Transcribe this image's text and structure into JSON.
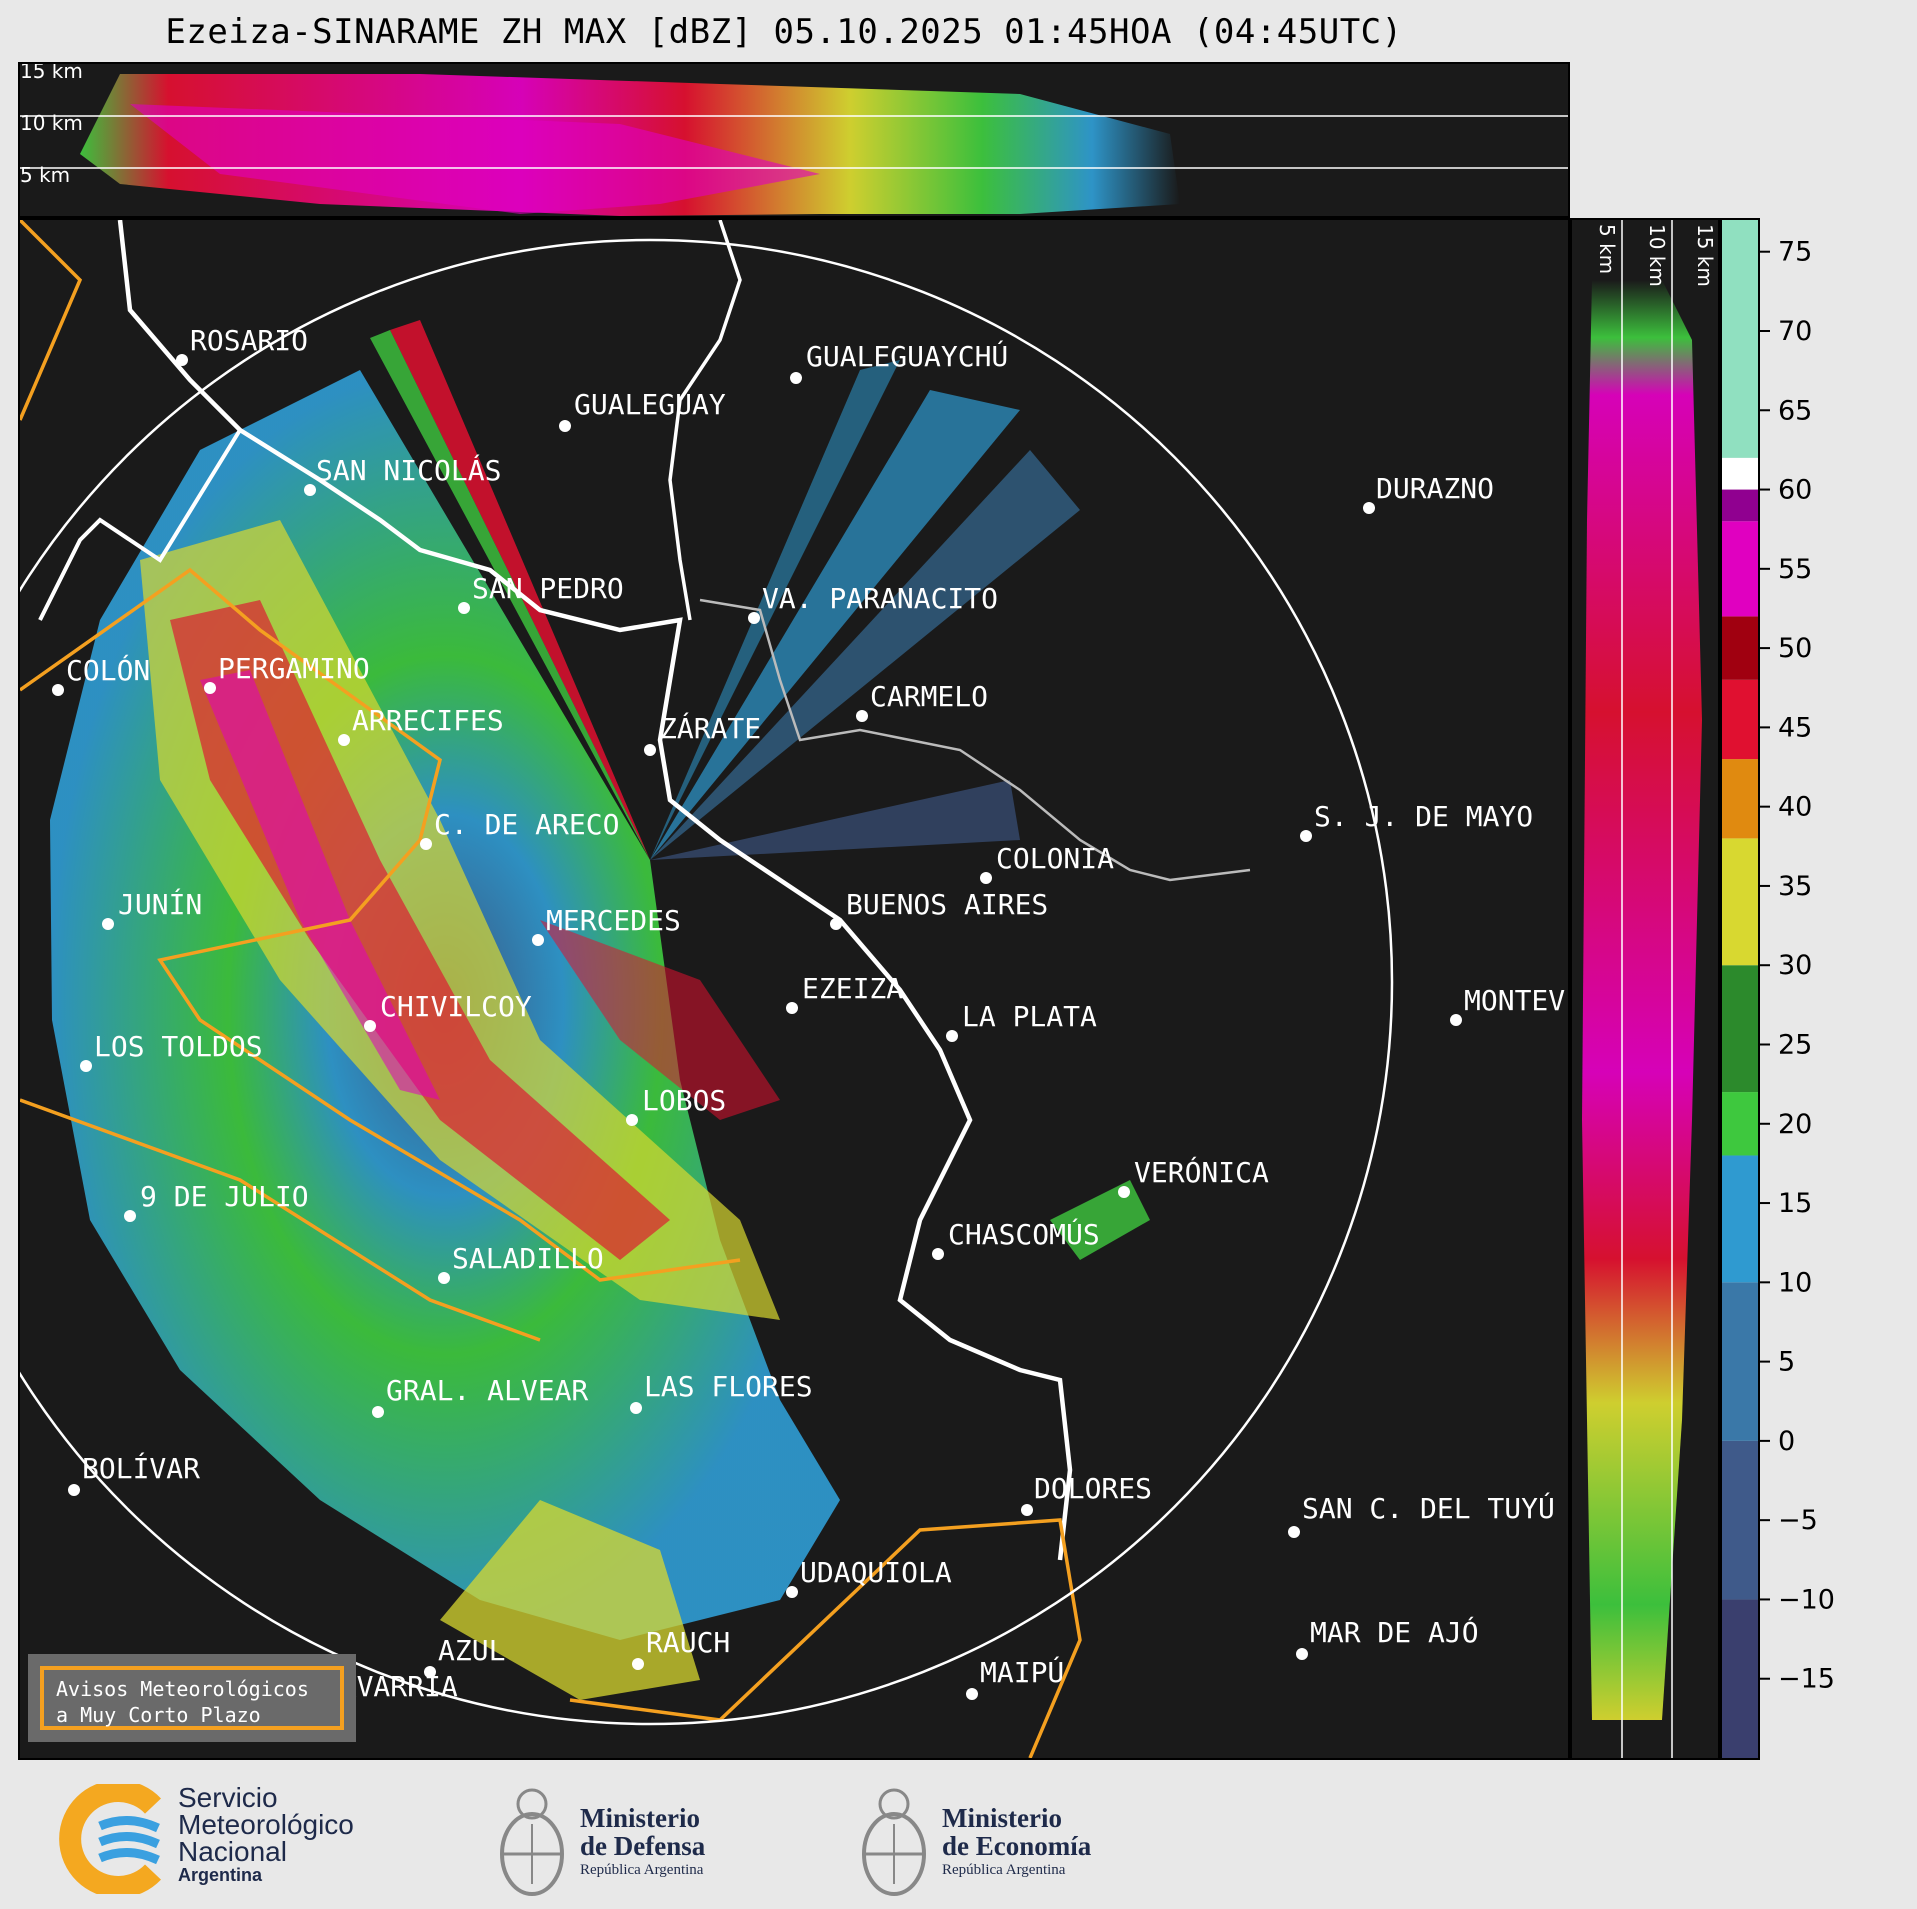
{
  "title": "Ezeiza-SINARAME ZH MAX [dBZ] 05.10.2025 01:45HOA (04:45UTC)",
  "top_panel": {
    "height_labels": [
      "15 km",
      "10 km",
      "5 km"
    ]
  },
  "side_panel": {
    "height_labels": [
      "5 km",
      "10 km",
      "15 km"
    ]
  },
  "cities": [
    {
      "name": "ROSARIO"
    },
    {
      "name": "GUALEGUAYCHÚ"
    },
    {
      "name": "GUALEGUAY"
    },
    {
      "name": "SAN NICOLÁS"
    },
    {
      "name": "DURAZNO"
    },
    {
      "name": "SAN PEDRO"
    },
    {
      "name": "VA. PARANACITO"
    },
    {
      "name": "COLÓN"
    },
    {
      "name": "PERGAMINO"
    },
    {
      "name": "CARMELO"
    },
    {
      "name": "ARRECIFES"
    },
    {
      "name": "ZÁRATE"
    },
    {
      "name": "S. J. DE MAYO"
    },
    {
      "name": "C. DE ARECO"
    },
    {
      "name": "COLONIA"
    },
    {
      "name": "JUNÍN"
    },
    {
      "name": "BUENOS AIRES"
    },
    {
      "name": "MERCEDES"
    },
    {
      "name": "EZEIZA"
    },
    {
      "name": "MONTEV"
    },
    {
      "name": "CHIVILCOY"
    },
    {
      "name": "LA PLATA"
    },
    {
      "name": "LOS TOLDOS"
    },
    {
      "name": "LOBOS"
    },
    {
      "name": "VERÓNICA"
    },
    {
      "name": "9 DE JULIO"
    },
    {
      "name": "CHASCOMÚS"
    },
    {
      "name": "SALADILLO"
    },
    {
      "name": "GRAL. ALVEAR"
    },
    {
      "name": "LAS FLORES"
    },
    {
      "name": "BOLÍVAR"
    },
    {
      "name": "DOLORES"
    },
    {
      "name": "SAN C. DEL TUYÚ"
    },
    {
      "name": "UDAQUIOLA"
    },
    {
      "name": "MAR DE AJÓ"
    },
    {
      "name": "AZUL"
    },
    {
      "name": "RAUCH"
    },
    {
      "name": "MAIPÚ"
    },
    {
      "name": "OLAVARRÍA"
    }
  ],
  "legend_box": {
    "line1": "Avisos Meteorológicos",
    "line2": "a Muy Corto Plazo"
  },
  "colorbar": {
    "ticks": [
      "75",
      "70",
      "65",
      "60",
      "55",
      "50",
      "45",
      "40",
      "35",
      "30",
      "25",
      "20",
      "15",
      "10",
      "5",
      "0",
      "−5",
      "−10",
      "−15"
    ],
    "range": [
      -20,
      77
    ],
    "bands": [
      {
        "from": -20,
        "to": -10,
        "color": "#3a3f6e"
      },
      {
        "from": -10,
        "to": 0,
        "color": "#3f5a8a"
      },
      {
        "from": 0,
        "to": 10,
        "color": "#3a78a8"
      },
      {
        "from": 10,
        "to": 18,
        "color": "#2f9ad0"
      },
      {
        "from": 18,
        "to": 22,
        "color": "#3ec83e"
      },
      {
        "from": 22,
        "to": 30,
        "color": "#2c8a2c"
      },
      {
        "from": 30,
        "to": 38,
        "color": "#d8d830"
      },
      {
        "from": 38,
        "to": 43,
        "color": "#e08a10"
      },
      {
        "from": 43,
        "to": 48,
        "color": "#e01030"
      },
      {
        "from": 48,
        "to": 52,
        "color": "#a00010"
      },
      {
        "from": 52,
        "to": 58,
        "color": "#e000c0"
      },
      {
        "from": 58,
        "to": 60,
        "color": "#900090"
      },
      {
        "from": 60,
        "to": 62,
        "color": "#ffffff"
      },
      {
        "from": 62,
        "to": 77,
        "color": "#90e0c0"
      }
    ]
  },
  "logos": {
    "smn": {
      "line1": "Servicio",
      "line2": "Meteorológico",
      "line3": "Nacional",
      "line4": "Argentina"
    },
    "defensa": {
      "line1": "Ministerio",
      "line2": "de Defensa",
      "line3": "República Argentina"
    },
    "economia": {
      "line1": "Ministerio",
      "line2": "de Economía",
      "line3": "República Argentina"
    }
  }
}
